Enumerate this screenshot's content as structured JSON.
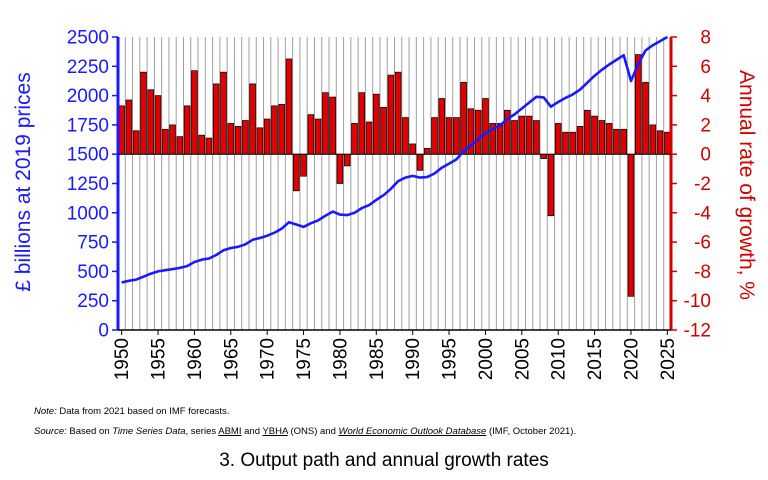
{
  "chart_data": {
    "type": "bar+line",
    "years": [
      1950,
      1951,
      1952,
      1953,
      1954,
      1955,
      1956,
      1957,
      1958,
      1959,
      1960,
      1961,
      1962,
      1963,
      1964,
      1965,
      1966,
      1967,
      1968,
      1969,
      1970,
      1971,
      1972,
      1973,
      1974,
      1975,
      1976,
      1977,
      1978,
      1979,
      1980,
      1981,
      1982,
      1983,
      1984,
      1985,
      1986,
      1987,
      1988,
      1989,
      1990,
      1991,
      1992,
      1993,
      1994,
      1995,
      1996,
      1997,
      1998,
      1999,
      2000,
      2001,
      2002,
      2003,
      2004,
      2005,
      2006,
      2007,
      2008,
      2009,
      2010,
      2011,
      2012,
      2013,
      2014,
      2015,
      2016,
      2017,
      2018,
      2019,
      2020,
      2021,
      2022,
      2023,
      2024,
      2025
    ],
    "series": [
      {
        "name": "",
        "type": "bar",
        "axis": "right",
        "color": "#e00000",
        "values": [
          3.3,
          3.7,
          1.6,
          5.6,
          4.4,
          4.0,
          1.7,
          2.0,
          1.2,
          3.3,
          5.7,
          1.3,
          1.1,
          4.8,
          5.6,
          2.1,
          1.9,
          2.3,
          4.8,
          1.8,
          2.4,
          3.3,
          3.4,
          6.5,
          -2.5,
          -1.5,
          2.7,
          2.4,
          4.2,
          3.9,
          -2.0,
          -0.8,
          2.1,
          4.2,
          2.2,
          4.1,
          3.2,
          5.4,
          5.6,
          2.5,
          0.7,
          -1.1,
          0.4,
          2.5,
          3.8,
          2.5,
          2.5,
          4.9,
          3.1,
          3.0,
          3.8,
          2.1,
          2.1,
          3.0,
          2.3,
          2.6,
          2.6,
          2.3,
          -0.3,
          -4.2,
          2.1,
          1.5,
          1.5,
          1.9,
          3.0,
          2.6,
          2.3,
          2.1,
          1.7,
          1.7,
          -9.7,
          6.8,
          4.9,
          2.0,
          1.6,
          1.5
        ]
      },
      {
        "name": "",
        "type": "line",
        "axis": "left",
        "color": "#1a1aff",
        "values": [
          405,
          420,
          430,
          455,
          480,
          500,
          510,
          520,
          530,
          545,
          580,
          600,
          610,
          640,
          680,
          700,
          710,
          730,
          770,
          785,
          805,
          830,
          865,
          920,
          900,
          880,
          910,
          935,
          975,
          1010,
          985,
          980,
          1000,
          1040,
          1065,
          1110,
          1150,
          1205,
          1270,
          1300,
          1315,
          1300,
          1305,
          1335,
          1385,
          1420,
          1455,
          1525,
          1575,
          1625,
          1680,
          1715,
          1745,
          1800,
          1840,
          1890,
          1940,
          1990,
          1985,
          1905,
          1945,
          1980,
          2010,
          2050,
          2110,
          2170,
          2220,
          2265,
          2305,
          2345,
          2125,
          2270,
          2385,
          2430,
          2465,
          2500
        ]
      }
    ],
    "ylabel": "£ billions at 2019 prices",
    "y2label": "Annual rate of growth, %",
    "ylim": [
      0,
      2500
    ],
    "y2lim": [
      -12,
      8
    ],
    "yticks": [
      "0",
      "250",
      "500",
      "750",
      "1000",
      "1250",
      "1500",
      "1750",
      "2000",
      "2250",
      "2500"
    ],
    "y2ticks": [
      "-12",
      "-10",
      "-8",
      "-6",
      "-4",
      "-2",
      "0",
      "2",
      "4",
      "6",
      "8"
    ],
    "xticks": [
      "1950",
      "1955",
      "1960",
      "1965",
      "1970",
      "1975",
      "1980",
      "1985",
      "1990",
      "1995",
      "2000",
      "2005",
      "2010",
      "2015",
      "2020",
      "2025"
    ],
    "grid": "vertical"
  },
  "notes": {
    "note_label": "Note:",
    "note_text": "Data from 2021 based on IMF forecasts.",
    "source_label": "Source:",
    "source_p1": "Based on",
    "source_title1": "Time Series Data",
    "source_p2": ", series",
    "source_abmi": "ABMI",
    "source_p3": "and",
    "source_ybha": "YBHA",
    "source_p4": "(ONS) and",
    "source_weo": "World Economic Outlook Database",
    "source_p5": "(IMF, October 2021)."
  },
  "caption": "3. Output path and annual growth rates"
}
